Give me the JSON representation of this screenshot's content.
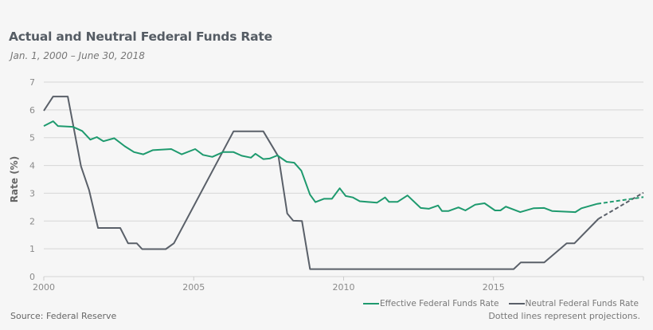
{
  "chart_data": {
    "type": "line",
    "title": "Actual and Neutral Federal Funds Rate",
    "subtitle": "Jan. 1, 2000 – June 30, 2018",
    "xlabel": "",
    "ylabel": "Rate (%)",
    "xlim": [
      2000,
      2020
    ],
    "ylim": [
      0,
      7
    ],
    "xticks": [
      "2000",
      "2005",
      "2010",
      "2015"
    ],
    "yticks": [
      "0",
      "1",
      "2",
      "3",
      "4",
      "5",
      "6",
      "7"
    ],
    "grid": true,
    "legend_placement": "bottom-right",
    "series": [
      {
        "name": "Effective Federal Funds Rate",
        "color": "#1e9a6e",
        "points": [
          [
            2000.0,
            5.42
          ],
          [
            2000.31,
            5.59
          ],
          [
            2000.47,
            5.42
          ],
          [
            2000.97,
            5.39
          ],
          [
            2001.28,
            5.24
          ],
          [
            2001.55,
            4.93
          ],
          [
            2001.77,
            5.02
          ],
          [
            2001.99,
            4.87
          ],
          [
            2002.35,
            4.98
          ],
          [
            2002.7,
            4.69
          ],
          [
            2003.01,
            4.48
          ],
          [
            2003.32,
            4.4
          ],
          [
            2003.63,
            4.55
          ],
          [
            2004.25,
            4.59
          ],
          [
            2004.6,
            4.4
          ],
          [
            2005.05,
            4.59
          ],
          [
            2005.31,
            4.38
          ],
          [
            2005.62,
            4.31
          ],
          [
            2005.98,
            4.48
          ],
          [
            2006.33,
            4.48
          ],
          [
            2006.6,
            4.35
          ],
          [
            2006.91,
            4.28
          ],
          [
            2007.06,
            4.42
          ],
          [
            2007.32,
            4.23
          ],
          [
            2007.53,
            4.25
          ],
          [
            2007.79,
            4.36
          ],
          [
            2008.1,
            4.13
          ],
          [
            2008.35,
            4.1
          ],
          [
            2008.59,
            3.81
          ],
          [
            2008.88,
            2.95
          ],
          [
            2009.06,
            2.68
          ],
          [
            2009.34,
            2.8
          ],
          [
            2009.61,
            2.8
          ],
          [
            2009.87,
            3.18
          ],
          [
            2010.07,
            2.9
          ],
          [
            2010.31,
            2.85
          ],
          [
            2010.54,
            2.71
          ],
          [
            2011.11,
            2.66
          ],
          [
            2011.38,
            2.85
          ],
          [
            2011.51,
            2.69
          ],
          [
            2011.8,
            2.69
          ],
          [
            2012.13,
            2.92
          ],
          [
            2012.57,
            2.47
          ],
          [
            2012.84,
            2.44
          ],
          [
            2013.15,
            2.56
          ],
          [
            2013.28,
            2.36
          ],
          [
            2013.5,
            2.36
          ],
          [
            2013.83,
            2.49
          ],
          [
            2014.06,
            2.38
          ],
          [
            2014.39,
            2.59
          ],
          [
            2014.7,
            2.64
          ],
          [
            2015.05,
            2.38
          ],
          [
            2015.23,
            2.38
          ],
          [
            2015.41,
            2.52
          ],
          [
            2015.89,
            2.32
          ],
          [
            2016.33,
            2.46
          ],
          [
            2016.69,
            2.47
          ],
          [
            2016.95,
            2.36
          ],
          [
            2017.73,
            2.32
          ],
          [
            2017.93,
            2.46
          ],
          [
            2018.46,
            2.62
          ]
        ],
        "projection": [
          [
            2018.46,
            2.62
          ],
          [
            2020.0,
            2.86
          ]
        ]
      },
      {
        "name": "Neutral Federal Funds Rate",
        "color": "#5a6069",
        "points": [
          [
            2000.0,
            5.97
          ],
          [
            2000.31,
            6.48
          ],
          [
            2000.8,
            6.48
          ],
          [
            2001.24,
            3.97
          ],
          [
            2001.51,
            3.11
          ],
          [
            2001.81,
            1.75
          ],
          [
            2002.55,
            1.75
          ],
          [
            2002.81,
            1.2
          ],
          [
            2003.1,
            1.2
          ],
          [
            2003.28,
            0.99
          ],
          [
            2004.07,
            0.99
          ],
          [
            2004.34,
            1.2
          ],
          [
            2006.33,
            5.23
          ],
          [
            2007.32,
            5.23
          ],
          [
            2007.83,
            4.31
          ],
          [
            2008.12,
            2.27
          ],
          [
            2008.32,
            2.01
          ],
          [
            2008.61,
            2.0
          ],
          [
            2008.88,
            0.27
          ],
          [
            2015.67,
            0.27
          ],
          [
            2015.91,
            0.51
          ],
          [
            2016.69,
            0.51
          ],
          [
            2017.44,
            1.2
          ],
          [
            2017.7,
            1.2
          ],
          [
            2018.5,
            2.08
          ]
        ],
        "projection": [
          [
            2018.5,
            2.08
          ],
          [
            2020.0,
            3.02
          ]
        ]
      }
    ]
  },
  "source": "Source:  Federal Reserve",
  "note": "Dotted lines represent projections."
}
